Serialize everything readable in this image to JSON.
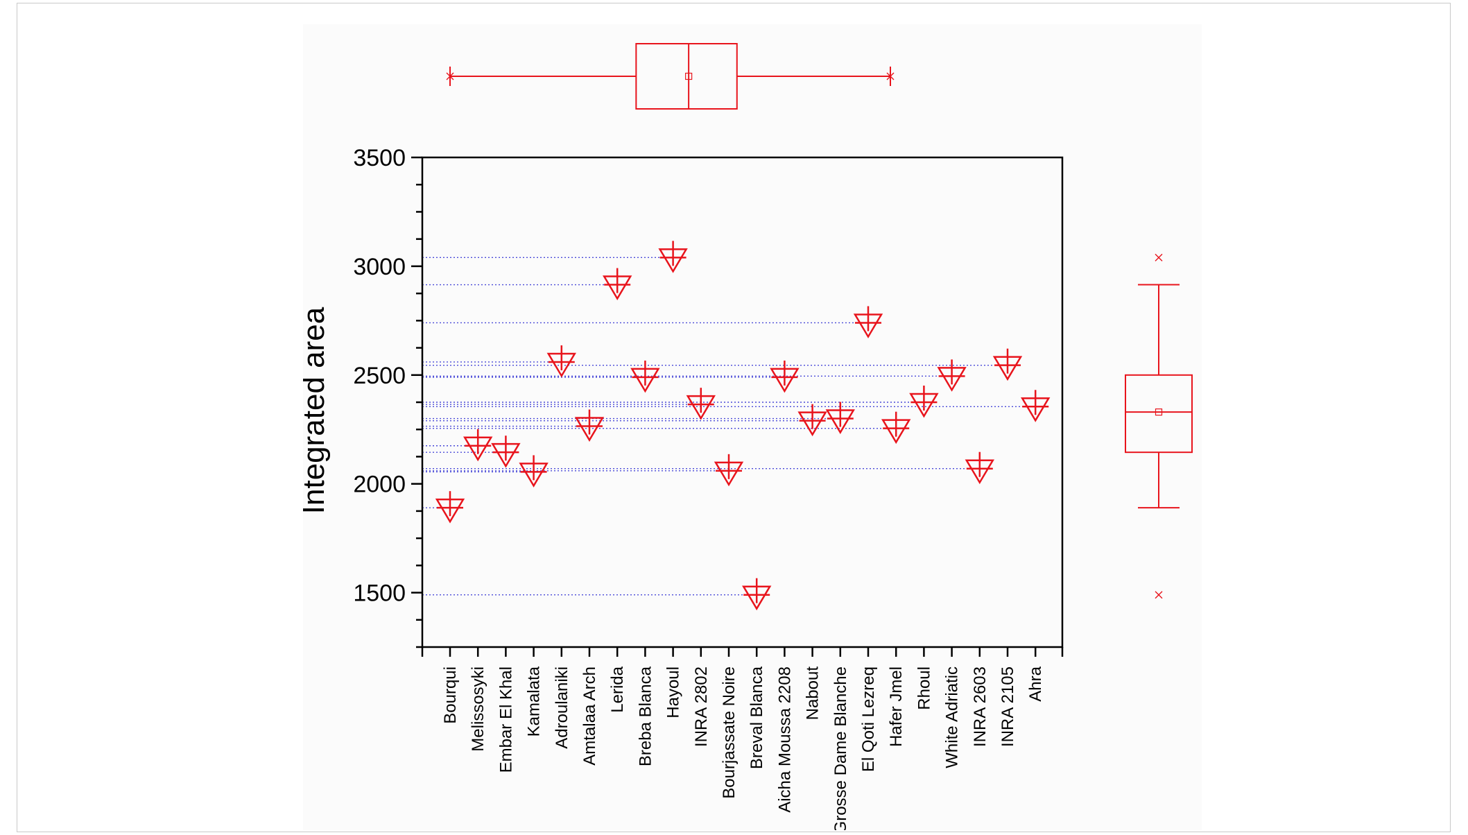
{
  "chart_data": {
    "type": "scatter",
    "ylabel": "Integrated area",
    "xlabel": "",
    "ylim": [
      1250,
      3500
    ],
    "yticks": [
      1500,
      2000,
      2500,
      3000,
      3500
    ],
    "grid": false,
    "drop_lines": true,
    "marker": "triangle-down-with-cross",
    "categories": [
      "Bourqui",
      "Melissosyki",
      "Embar El Khal",
      "Kamalata",
      "Adroulaniki",
      "Amtalaa Arch",
      "Lerida",
      "Breba Blanca",
      "Hayoul",
      "INRA 2802",
      "Bourjassate Noire",
      "Breval Blanca",
      "Aicha Moussa 2208",
      "Nabout",
      "Grosse Dame Blanche",
      "El Qoti Lezreq",
      "Hafer Jmel",
      "Rhoul",
      "White Adriatic",
      "INRA 2603",
      "INRA 2105",
      "Ahra"
    ],
    "values": [
      1890,
      2175,
      2145,
      2055,
      2560,
      2265,
      2915,
      2490,
      3040,
      2365,
      2060,
      1490,
      2490,
      2290,
      2300,
      2740,
      2255,
      2375,
      2495,
      2070,
      2545,
      2355
    ],
    "marginal_boxplots": {
      "top": {
        "whisker_low": 1890,
        "q1": 2145,
        "median": 2330,
        "q3": 2500,
        "whisker_high": 2915,
        "mean": 2330,
        "outliers": [
          1490,
          3040
        ]
      },
      "right": {
        "whisker_low": 1890,
        "q1": 2145,
        "median": 2330,
        "q3": 2500,
        "whisker_high": 2915,
        "mean": 2330,
        "outliers": [
          1490,
          3040
        ]
      }
    },
    "colors": {
      "marker": "#e8141c",
      "drop_line": "#4a4ad8",
      "axis": "#000000"
    }
  }
}
